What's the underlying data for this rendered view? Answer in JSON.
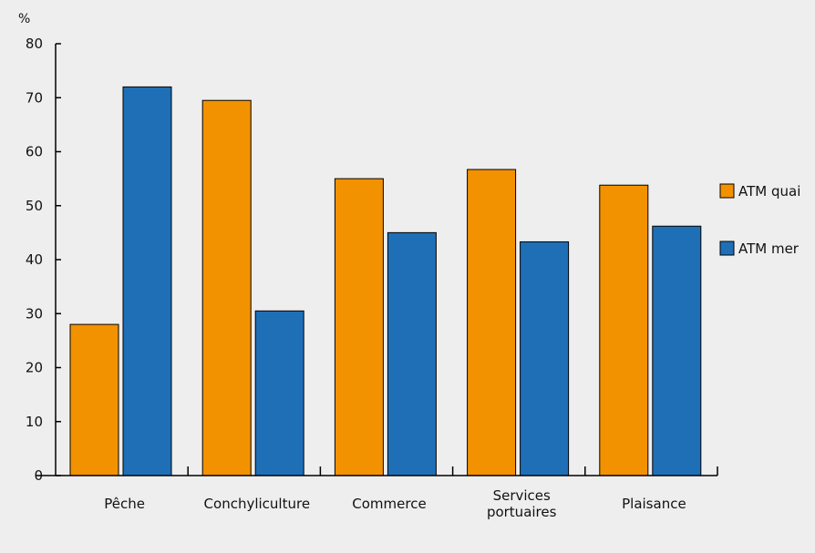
{
  "chart_data": {
    "type": "bar",
    "ylabel": "%",
    "ylim": [
      0,
      80
    ],
    "yticks": [
      0,
      10,
      20,
      30,
      40,
      50,
      60,
      70,
      80
    ],
    "categories": [
      [
        "Pêche"
      ],
      [
        "Conchyliculture"
      ],
      [
        "Commerce"
      ],
      [
        "Services",
        "portuaires"
      ],
      [
        "Plaisance"
      ]
    ],
    "series": [
      {
        "name": "ATM quai",
        "color": "#f39200",
        "values": [
          28,
          69.5,
          55,
          56.7,
          53.8
        ]
      },
      {
        "name": "ATM mer",
        "color": "#1f6fb7",
        "values": [
          72,
          30.5,
          45,
          43.3,
          46.2
        ]
      }
    ],
    "grid": false,
    "legend_position": "right"
  }
}
